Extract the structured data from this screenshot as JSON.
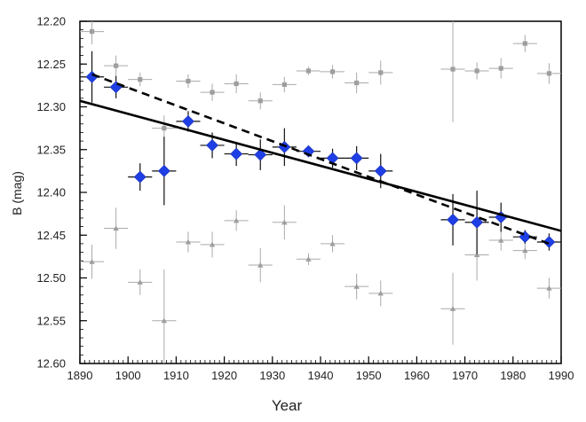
{
  "chart_data": {
    "type": "scatter",
    "xlabel": "Year",
    "ylabel": "B (mag)",
    "xlim": [
      1890,
      1990
    ],
    "ylim": [
      12.2,
      12.6
    ],
    "y_inverted": true,
    "x_ticks": [
      "1890",
      "1900",
      "1910",
      "1920",
      "1930",
      "1940",
      "1950",
      "1960",
      "1970",
      "1980",
      "1990"
    ],
    "y_ticks": [
      "12.20",
      "12.25",
      "12.30",
      "12.35",
      "12.40",
      "12.45",
      "12.50",
      "12.55",
      "12.60"
    ],
    "grid": false,
    "series": [
      {
        "marker": "diamond",
        "color": "#1f3fe6",
        "points": [
          {
            "x": 1892.5,
            "y": 12.265,
            "xerr": 2.5,
            "yerr": 0.03
          },
          {
            "x": 1897.5,
            "y": 12.277,
            "xerr": 2.5,
            "yerr": 0.013
          },
          {
            "x": 1902.5,
            "y": 12.382,
            "xerr": 2.5,
            "yerr": 0.016
          },
          {
            "x": 1907.5,
            "y": 12.375,
            "xerr": 2.5,
            "yerr": 0.04
          },
          {
            "x": 1912.5,
            "y": 12.317,
            "xerr": 2.5,
            "yerr": 0.012
          },
          {
            "x": 1917.5,
            "y": 12.345,
            "xerr": 2.5,
            "yerr": 0.015
          },
          {
            "x": 1922.5,
            "y": 12.355,
            "xerr": 2.5,
            "yerr": 0.014
          },
          {
            "x": 1927.5,
            "y": 12.356,
            "xerr": 2.5,
            "yerr": 0.018
          },
          {
            "x": 1932.5,
            "y": 12.347,
            "xerr": 2.5,
            "yerr": 0.022
          },
          {
            "x": 1937.5,
            "y": 12.352,
            "xerr": 2.5,
            "yerr": 0.006
          },
          {
            "x": 1942.5,
            "y": 12.36,
            "xerr": 2.5,
            "yerr": 0.011
          },
          {
            "x": 1947.5,
            "y": 12.36,
            "xerr": 2.5,
            "yerr": 0.014
          },
          {
            "x": 1952.5,
            "y": 12.375,
            "xerr": 2.5,
            "yerr": 0.02
          },
          {
            "x": 1967.5,
            "y": 12.432,
            "xerr": 2.5,
            "yerr": 0.03
          },
          {
            "x": 1972.5,
            "y": 12.435,
            "xerr": 2.5,
            "yerr": 0.037
          },
          {
            "x": 1977.5,
            "y": 12.429,
            "xerr": 2.5,
            "yerr": 0.017
          },
          {
            "x": 1982.5,
            "y": 12.452,
            "xerr": 2.5,
            "yerr": 0.008
          },
          {
            "x": 1987.5,
            "y": 12.458,
            "xerr": 2.5,
            "yerr": 0.01
          }
        ]
      },
      {
        "marker": "square",
        "color": "#9e9e9e",
        "points": [
          {
            "x": 1892.5,
            "y": 12.212,
            "xerr": 2.5,
            "yerr": 0.015
          },
          {
            "x": 1897.5,
            "y": 12.252,
            "xerr": 2.5,
            "yerr": 0.012
          },
          {
            "x": 1902.5,
            "y": 12.268,
            "xerr": 2.5,
            "yerr": 0.008
          },
          {
            "x": 1907.5,
            "y": 12.325,
            "xerr": 2.5,
            "yerr": 0.015
          },
          {
            "x": 1912.5,
            "y": 12.27,
            "xerr": 2.5,
            "yerr": 0.008
          },
          {
            "x": 1917.5,
            "y": 12.283,
            "xerr": 2.5,
            "yerr": 0.01
          },
          {
            "x": 1922.5,
            "y": 12.273,
            "xerr": 2.5,
            "yerr": 0.011
          },
          {
            "x": 1927.5,
            "y": 12.293,
            "xerr": 2.5,
            "yerr": 0.01
          },
          {
            "x": 1932.5,
            "y": 12.274,
            "xerr": 2.5,
            "yerr": 0.009
          },
          {
            "x": 1937.5,
            "y": 12.258,
            "xerr": 2.5,
            "yerr": 0.005
          },
          {
            "x": 1942.5,
            "y": 12.259,
            "xerr": 2.5,
            "yerr": 0.008
          },
          {
            "x": 1947.5,
            "y": 12.272,
            "xerr": 2.5,
            "yerr": 0.012
          },
          {
            "x": 1952.5,
            "y": 12.26,
            "xerr": 2.5,
            "yerr": 0.014
          },
          {
            "x": 1967.5,
            "y": 12.256,
            "xerr": 2.5,
            "yerr": 0.062
          },
          {
            "x": 1972.5,
            "y": 12.258,
            "xerr": 2.5,
            "yerr": 0.01
          },
          {
            "x": 1977.5,
            "y": 12.255,
            "xerr": 2.5,
            "yerr": 0.012
          },
          {
            "x": 1982.5,
            "y": 12.226,
            "xerr": 2.5,
            "yerr": 0.01
          },
          {
            "x": 1987.5,
            "y": 12.261,
            "xerr": 2.5,
            "yerr": 0.012
          }
        ]
      },
      {
        "marker": "triangle",
        "color": "#9e9e9e",
        "points": [
          {
            "x": 1892.5,
            "y": 12.481,
            "xerr": 2.5,
            "yerr": 0.02
          },
          {
            "x": 1897.5,
            "y": 12.442,
            "xerr": 2.5,
            "yerr": 0.024
          },
          {
            "x": 1902.5,
            "y": 12.505,
            "xerr": 2.5,
            "yerr": 0.015
          },
          {
            "x": 1907.5,
            "y": 12.55,
            "xerr": 2.5,
            "yerr": 0.06
          },
          {
            "x": 1912.5,
            "y": 12.458,
            "xerr": 2.5,
            "yerr": 0.012
          },
          {
            "x": 1917.5,
            "y": 12.461,
            "xerr": 2.5,
            "yerr": 0.015
          },
          {
            "x": 1922.5,
            "y": 12.433,
            "xerr": 2.5,
            "yerr": 0.012
          },
          {
            "x": 1927.5,
            "y": 12.485,
            "xerr": 2.5,
            "yerr": 0.02
          },
          {
            "x": 1932.5,
            "y": 12.435,
            "xerr": 2.5,
            "yerr": 0.02
          },
          {
            "x": 1937.5,
            "y": 12.478,
            "xerr": 2.5,
            "yerr": 0.007
          },
          {
            "x": 1942.5,
            "y": 12.46,
            "xerr": 2.5,
            "yerr": 0.01
          },
          {
            "x": 1947.5,
            "y": 12.51,
            "xerr": 2.5,
            "yerr": 0.015
          },
          {
            "x": 1952.5,
            "y": 12.518,
            "xerr": 2.5,
            "yerr": 0.015
          },
          {
            "x": 1967.5,
            "y": 12.536,
            "xerr": 2.5,
            "yerr": 0.042
          },
          {
            "x": 1972.5,
            "y": 12.473,
            "xerr": 2.5,
            "yerr": 0.03
          },
          {
            "x": 1977.5,
            "y": 12.456,
            "xerr": 2.5,
            "yerr": 0.012
          },
          {
            "x": 1982.5,
            "y": 12.468,
            "xerr": 2.5,
            "yerr": 0.01
          },
          {
            "x": 1987.5,
            "y": 12.512,
            "xerr": 2.5,
            "yerr": 0.012
          }
        ]
      }
    ],
    "fit_lines": [
      {
        "style": "solid",
        "color": "#000000",
        "from": [
          1890,
          12.293
        ],
        "to": [
          1990,
          12.445
        ]
      },
      {
        "style": "dashed",
        "color": "#000000",
        "from": [
          1892.5,
          12.262
        ],
        "to": [
          1987.5,
          12.46
        ]
      }
    ]
  }
}
